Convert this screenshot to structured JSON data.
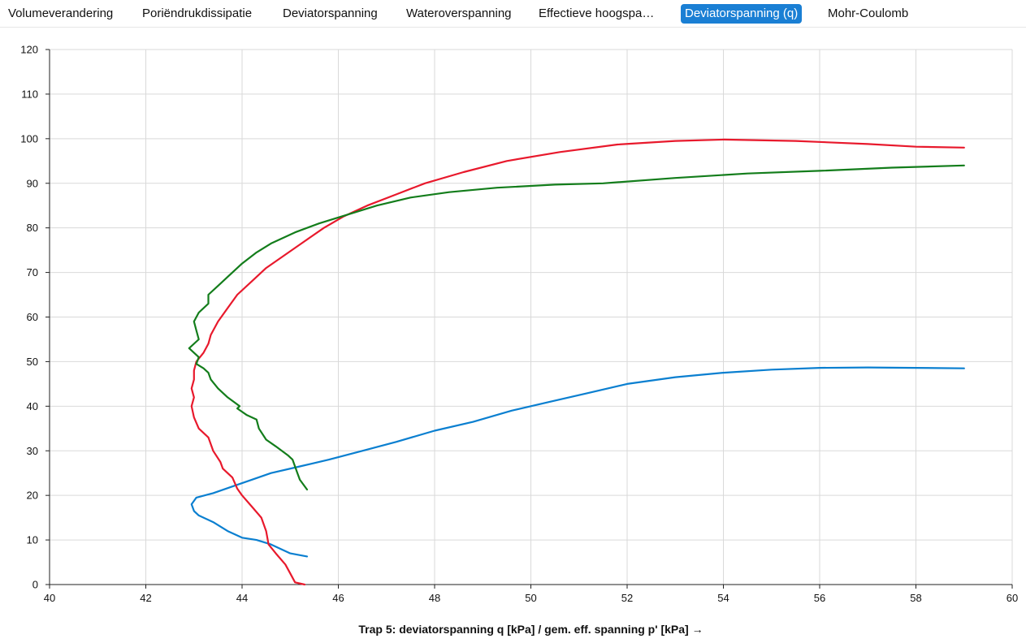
{
  "tabs": [
    {
      "label": "Volumeverandering",
      "active": false
    },
    {
      "label": "Poriëndrukdissipatie",
      "active": false
    },
    {
      "label": "Deviatorspanning",
      "active": false
    },
    {
      "label": "Wateroverspanning",
      "active": false
    },
    {
      "label": "Effectieve hoogspa…",
      "active": false
    },
    {
      "label": "Deviatorspanning (q)",
      "active": true
    },
    {
      "label": "Mohr-Coulomb",
      "active": false
    }
  ],
  "colors": {
    "accent": "#1a7fd4",
    "grid": "#d9d9d9"
  },
  "chart_data": {
    "type": "line",
    "title": "",
    "xlabel": "Trap 5: deviatorspanning q [kPa] / gem. eff. spanning p' [kPa] →",
    "ylabel": "",
    "xlim": [
      40,
      60
    ],
    "ylim": [
      0,
      120
    ],
    "x_ticks": [
      40,
      42,
      44,
      46,
      48,
      50,
      52,
      54,
      56,
      58,
      60
    ],
    "y_ticks": [
      0,
      10,
      20,
      30,
      40,
      50,
      60,
      70,
      80,
      90,
      100,
      110,
      120
    ],
    "grid": true,
    "legend": "none",
    "series": [
      {
        "color": "#0a7fd0",
        "points": [
          [
            45.35,
            6.3
          ],
          [
            45.0,
            7.0
          ],
          [
            44.6,
            9.0
          ],
          [
            44.3,
            10.0
          ],
          [
            44.0,
            10.5
          ],
          [
            43.7,
            12.0
          ],
          [
            43.4,
            14.0
          ],
          [
            43.1,
            15.5
          ],
          [
            43.0,
            16.5
          ],
          [
            42.95,
            18.0
          ],
          [
            43.05,
            19.5
          ],
          [
            43.4,
            20.5
          ],
          [
            43.8,
            22.0
          ],
          [
            44.2,
            23.5
          ],
          [
            44.6,
            25.0
          ],
          [
            45.2,
            26.5
          ],
          [
            45.8,
            28.0
          ],
          [
            46.5,
            30.0
          ],
          [
            47.2,
            32.0
          ],
          [
            48.0,
            34.5
          ],
          [
            48.8,
            36.5
          ],
          [
            49.6,
            39.0
          ],
          [
            50.4,
            41.0
          ],
          [
            51.2,
            43.0
          ],
          [
            52.0,
            45.0
          ],
          [
            53.0,
            46.5
          ],
          [
            54.0,
            47.5
          ],
          [
            55.0,
            48.2
          ],
          [
            56.0,
            48.6
          ],
          [
            57.0,
            48.7
          ],
          [
            58.0,
            48.6
          ],
          [
            59.0,
            48.5
          ]
        ]
      },
      {
        "color": "#e8192c",
        "points": [
          [
            45.3,
            0.0
          ],
          [
            45.1,
            0.5
          ],
          [
            45.0,
            2.5
          ],
          [
            44.9,
            4.5
          ],
          [
            44.7,
            7.0
          ],
          [
            44.55,
            9.0
          ],
          [
            44.5,
            12.0
          ],
          [
            44.4,
            15.0
          ],
          [
            44.2,
            17.5
          ],
          [
            44.0,
            20.0
          ],
          [
            43.9,
            21.5
          ],
          [
            43.8,
            24.0
          ],
          [
            43.6,
            26.0
          ],
          [
            43.55,
            27.5
          ],
          [
            43.4,
            30.0
          ],
          [
            43.3,
            33.0
          ],
          [
            43.1,
            35.0
          ],
          [
            43.0,
            37.5
          ],
          [
            42.95,
            40.0
          ],
          [
            43.0,
            42.0
          ],
          [
            42.95,
            44.0
          ],
          [
            43.0,
            46.0
          ],
          [
            43.0,
            48.0
          ],
          [
            43.05,
            50.0
          ],
          [
            43.2,
            52.0
          ],
          [
            43.3,
            54.0
          ],
          [
            43.35,
            56.0
          ],
          [
            43.5,
            59.0
          ],
          [
            43.7,
            62.0
          ],
          [
            43.9,
            65.0
          ],
          [
            44.2,
            68.0
          ],
          [
            44.5,
            71.0
          ],
          [
            44.9,
            74.0
          ],
          [
            45.3,
            77.0
          ],
          [
            45.7,
            80.0
          ],
          [
            46.1,
            82.5
          ],
          [
            46.6,
            85.0
          ],
          [
            47.2,
            87.5
          ],
          [
            47.8,
            90.0
          ],
          [
            48.6,
            92.5
          ],
          [
            49.5,
            95.0
          ],
          [
            50.6,
            97.0
          ],
          [
            51.8,
            98.7
          ],
          [
            53.0,
            99.5
          ],
          [
            54.0,
            99.8
          ],
          [
            55.5,
            99.5
          ],
          [
            57.0,
            98.8
          ],
          [
            58.0,
            98.2
          ],
          [
            59.0,
            98.0
          ]
        ]
      },
      {
        "color": "#137d1b",
        "points": [
          [
            45.35,
            21.3
          ],
          [
            45.2,
            23.5
          ],
          [
            45.15,
            25.0
          ],
          [
            45.05,
            28.0
          ],
          [
            44.95,
            29.0
          ],
          [
            44.7,
            31.0
          ],
          [
            44.5,
            32.5
          ],
          [
            44.35,
            35.0
          ],
          [
            44.3,
            37.0
          ],
          [
            44.1,
            38.0
          ],
          [
            43.9,
            39.5
          ],
          [
            43.95,
            40.0
          ],
          [
            43.7,
            42.0
          ],
          [
            43.5,
            44.0
          ],
          [
            43.35,
            46.0
          ],
          [
            43.3,
            47.5
          ],
          [
            43.2,
            48.5
          ],
          [
            43.05,
            49.5
          ],
          [
            43.1,
            51.0
          ],
          [
            42.9,
            53.0
          ],
          [
            43.1,
            55.0
          ],
          [
            43.05,
            57.0
          ],
          [
            43.0,
            59.0
          ],
          [
            43.1,
            61.0
          ],
          [
            43.3,
            63.0
          ],
          [
            43.3,
            65.0
          ],
          [
            43.5,
            67.0
          ],
          [
            43.7,
            69.0
          ],
          [
            44.0,
            72.0
          ],
          [
            44.3,
            74.5
          ],
          [
            44.6,
            76.5
          ],
          [
            45.1,
            79.0
          ],
          [
            45.6,
            81.0
          ],
          [
            46.2,
            83.0
          ],
          [
            46.8,
            85.0
          ],
          [
            47.5,
            86.8
          ],
          [
            48.3,
            88.0
          ],
          [
            49.3,
            89.0
          ],
          [
            50.5,
            89.7
          ],
          [
            51.5,
            90.0
          ],
          [
            53.0,
            91.2
          ],
          [
            54.5,
            92.2
          ],
          [
            56.0,
            92.8
          ],
          [
            57.5,
            93.5
          ],
          [
            59.0,
            94.0
          ]
        ]
      }
    ]
  }
}
